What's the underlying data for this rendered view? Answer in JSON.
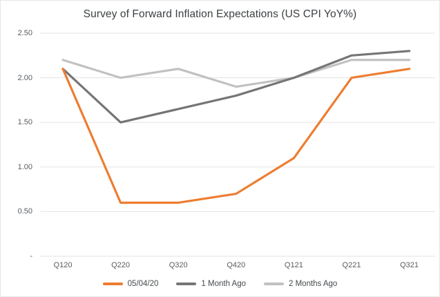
{
  "chart_data": {
    "type": "line",
    "title": "Survey of Forward Inflation Expectations (US CPI YoY%)",
    "categories": [
      "Q120",
      "Q220",
      "Q320",
      "Q420",
      "Q121",
      "Q221",
      "Q321"
    ],
    "series": [
      {
        "name": "05/04/20",
        "color": "#ED7D31",
        "values": [
          2.1,
          0.6,
          0.6,
          0.7,
          1.1,
          2.0,
          2.1
        ]
      },
      {
        "name": "1 Month Ago",
        "color": "#757575",
        "values": [
          2.1,
          1.5,
          1.65,
          1.8,
          2.0,
          2.25,
          2.3
        ]
      },
      {
        "name": "2 Months Ago",
        "color": "#C1C1C1",
        "values": [
          2.2,
          2.0,
          2.1,
          1.9,
          2.0,
          2.2,
          2.2
        ]
      }
    ],
    "y_ticks": [
      {
        "label": "2.50",
        "value": 2.5
      },
      {
        "label": "2.00",
        "value": 2.0
      },
      {
        "label": "1.50",
        "value": 1.5
      },
      {
        "label": "1.00",
        "value": 1.0
      },
      {
        "label": "0.50",
        "value": 0.5
      },
      {
        "label": "-",
        "value": 0.0
      }
    ],
    "ylim": [
      0,
      2.5
    ],
    "xlabel": "",
    "ylabel": "",
    "grid": "horizontal",
    "legend_position": "bottom",
    "gridline_color": "#e3e3e3",
    "background_color": "#ffffff",
    "title_color": "#3c4043",
    "tick_label_color": "#575b5f"
  }
}
